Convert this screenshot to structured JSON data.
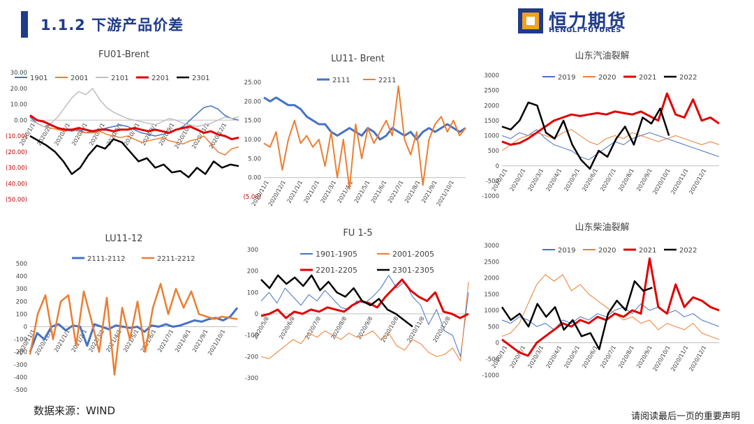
{
  "header": {
    "title": "1.1.2 下游产品价差"
  },
  "logo": {
    "name_cn": "恒力期货",
    "name_en": "HENGLI FUTURES"
  },
  "footer": {
    "source": "数据来源：WIND",
    "disclaimer": "请阅读最后一页的重要声明"
  },
  "chart_data": [
    {
      "id": "c1",
      "type": "line",
      "title": "FU01-Brent",
      "ylim": [
        -50,
        30
      ],
      "yticks": [
        "30.00",
        "20.00",
        "10.00",
        "0.00",
        "(10.00)",
        "(20.00)",
        "(30.00)",
        "(40.00)",
        "(50.00)"
      ],
      "xticks": [
        "2020/1/1",
        "2020/2/1",
        "2020/3/1",
        "2020/4/1",
        "2020/5/1",
        "2020/6/1",
        "2020/7/1",
        "2020/8/1",
        "2020/9/1",
        "2020/10/1",
        "2020/11/1",
        "2020/12/1"
      ],
      "series": [
        {
          "name": "1901",
          "color": "#4472c4",
          "width": 1.5,
          "values": [
            2,
            -2,
            -4,
            -3,
            -5,
            -6,
            -7,
            -6,
            -8,
            -7,
            -6,
            -5,
            -4,
            -3,
            -4,
            -6,
            -8,
            -9,
            -10,
            -9,
            -8,
            -6,
            -4,
            0,
            4,
            8,
            9,
            7,
            3,
            1,
            0
          ]
        },
        {
          "name": "2001",
          "color": "#ed7d31",
          "width": 1.5,
          "values": [
            0,
            -2,
            -4,
            -5,
            -6,
            -7,
            -6,
            -7,
            -8,
            -8,
            -7,
            -9,
            -10,
            -11,
            -10,
            -12,
            -14,
            -13,
            -12,
            -11,
            -13,
            -14,
            -15,
            -13,
            -12,
            -10,
            -15,
            -20,
            -22,
            -18,
            -17
          ]
        },
        {
          "name": "2101",
          "color": "#bfbfbf",
          "width": 1.5,
          "values": [
            0,
            -2,
            -4,
            -2,
            2,
            8,
            14,
            18,
            16,
            20,
            13,
            8,
            5,
            3,
            1,
            0,
            -1,
            -2,
            -3,
            -1,
            1,
            0,
            -2,
            -3,
            -4,
            -3,
            -2,
            0,
            2,
            1,
            2
          ]
        },
        {
          "name": "2201",
          "color": "#e00000",
          "width": 3,
          "values": [
            3,
            0,
            -1,
            -3,
            -5,
            -6,
            -6,
            -5,
            -6,
            -7,
            -6,
            -6,
            -7,
            -6,
            -6,
            -5,
            -6,
            -7,
            -6,
            -7,
            -8,
            -6,
            -5,
            -4,
            -6,
            -8,
            -7,
            -9,
            -10,
            -12,
            -11
          ]
        },
        {
          "name": "2301",
          "color": "#000000",
          "width": 2.5,
          "values": [
            -10,
            -13,
            -16,
            -20,
            -26,
            -34,
            -30,
            -22,
            -16,
            -18,
            -12,
            -14,
            -20,
            -26,
            -24,
            -30,
            -28,
            -33,
            -32,
            -36,
            -30,
            -34,
            -26,
            -30,
            -28,
            -29
          ]
        }
      ]
    },
    {
      "id": "c2",
      "type": "line",
      "title": "LU11- Brent",
      "ylim": [
        -5,
        25
      ],
      "yticks": [
        "25.00",
        "20.00",
        "15.00",
        "10.00",
        "5.00",
        "0.00",
        "(5.00)"
      ],
      "xticks": [
        "2020/11/1",
        "2020/12/1",
        "2021/1/1",
        "2021/2/1",
        "2021/3/1",
        "2021/4/1",
        "2021/5/1",
        "2021/6/1",
        "2021/7/1",
        "2021/8/1",
        "2021/9/1",
        "2021/10/1"
      ],
      "series": [
        {
          "name": "2111",
          "color": "#4472c4",
          "width": 3,
          "values": [
            21,
            20,
            21,
            20,
            19,
            19,
            18,
            16,
            15,
            14,
            14,
            12,
            11,
            12,
            13,
            12,
            11,
            13,
            12,
            10,
            11,
            13,
            12,
            11,
            12,
            10,
            12,
            13,
            12,
            13,
            14,
            13,
            12,
            13
          ]
        },
        {
          "name": "2211",
          "color": "#ed7d31",
          "width": 2,
          "values": [
            9,
            8,
            12,
            2,
            10,
            15,
            9,
            11,
            8,
            10,
            3,
            12,
            0,
            10,
            -3,
            14,
            5,
            13,
            9,
            12,
            15,
            11,
            24,
            10,
            6,
            12,
            -2,
            10,
            14,
            16,
            12,
            15,
            11,
            13
          ]
        }
      ]
    },
    {
      "id": "c3",
      "type": "line",
      "title": "山东汽油裂解",
      "ylim": [
        -1000,
        3000
      ],
      "yticks": [
        "3000",
        "2500",
        "2000",
        "1500",
        "1000",
        "500",
        "0",
        "-500",
        "-1000"
      ],
      "xticks": [
        "2020/1/1",
        "2020/2/1",
        "2020/3/1",
        "2020/4/1",
        "2020/5/1",
        "2020/6/1",
        "2020/7/1",
        "2020/8/1",
        "2020/9/1",
        "2020/10/1",
        "2020/11/1",
        "2020/12/1"
      ],
      "series": [
        {
          "name": "2019",
          "color": "#4472c4",
          "width": 1,
          "values": [
            1000,
            900,
            1100,
            1000,
            1200,
            900,
            700,
            600,
            500,
            300,
            200,
            400,
            600,
            800,
            700,
            900,
            1000,
            1100,
            1000,
            900,
            800,
            700,
            600,
            500,
            400,
            300
          ]
        },
        {
          "name": "2020",
          "color": "#ed7d31",
          "width": 1,
          "values": [
            500,
            700,
            900,
            1000,
            1100,
            1000,
            900,
            1100,
            1200,
            1000,
            800,
            700,
            900,
            1000,
            900,
            1100,
            1000,
            900,
            800,
            900,
            1000,
            900,
            800,
            700,
            800,
            700
          ]
        },
        {
          "name": "2021",
          "color": "#e00000",
          "width": 3,
          "values": [
            800,
            700,
            750,
            900,
            1100,
            1300,
            1500,
            1600,
            1700,
            1650,
            1700,
            1750,
            1700,
            1800,
            1750,
            1700,
            1800,
            1650,
            1500,
            2400,
            1700,
            1600,
            2200,
            1500,
            1600,
            1400
          ]
        },
        {
          "name": "2022",
          "color": "#000000",
          "width": 2.5,
          "values": [
            1300,
            1200,
            1500,
            2100,
            2000,
            1100,
            900,
            1500,
            700,
            200,
            -100,
            500,
            300,
            900,
            1300,
            700,
            1600,
            1400,
            1900,
            1000
          ]
        }
      ]
    },
    {
      "id": "c4",
      "type": "line",
      "title": "LU11-12",
      "ylim": [
        -500,
        500
      ],
      "yticks": [
        "500",
        "400",
        "300",
        "200",
        "100",
        "0",
        "-100",
        "-200",
        "-300",
        "-400",
        "-500"
      ],
      "xticks": [
        "2020/11/1",
        "2020/12/1",
        "2021/1/1",
        "2021/2/1",
        "2021/3/1",
        "2021/4/1",
        "2021/5/1",
        "2021/6/1",
        "2021/7/1",
        "2021/8/1",
        "2021/9/1",
        "2021/10/1"
      ],
      "series": [
        {
          "name": "2111-2112",
          "color": "#4472c4",
          "width": 3,
          "values": [
            -200,
            -50,
            -100,
            0,
            20,
            -30,
            10,
            0,
            -150,
            20,
            0,
            -20,
            10,
            0,
            -10,
            0,
            -40,
            10,
            0,
            20,
            0,
            10,
            30,
            50,
            40,
            60,
            70,
            50,
            80,
            150
          ]
        },
        {
          "name": "2211-2212",
          "color": "#ed7d31",
          "width": 2.5,
          "values": [
            -220,
            100,
            250,
            -100,
            200,
            250,
            -150,
            280,
            50,
            -200,
            230,
            -380,
            150,
            -100,
            200,
            -200,
            150,
            340,
            100,
            300,
            150,
            280,
            100,
            80,
            60,
            80,
            70,
            60
          ]
        }
      ]
    },
    {
      "id": "c5",
      "type": "line",
      "title": "FU 1-5",
      "ylim": [
        -300,
        300
      ],
      "yticks": [
        "300",
        "200",
        "100",
        "0",
        "-100",
        "-200",
        "-300"
      ],
      "xticks": [
        "2020/5/8",
        "2020/6/8",
        "2020/7/8",
        "2020/8/8",
        "2020/9/8",
        "2020/10/8",
        "2020/11/8",
        "2020/12/8"
      ],
      "series": [
        {
          "name": "1901-1905",
          "color": "#4472c4",
          "width": 1,
          "values": [
            60,
            100,
            50,
            120,
            80,
            40,
            90,
            60,
            110,
            70,
            30,
            20,
            60,
            50,
            80,
            120,
            180,
            120,
            150,
            80,
            40,
            -50,
            20,
            -80,
            -100,
            -200,
            100
          ]
        },
        {
          "name": "2001-2005",
          "color": "#ed7d31",
          "width": 1,
          "values": [
            -200,
            -210,
            -180,
            -150,
            -120,
            -140,
            -90,
            -110,
            -80,
            -100,
            -120,
            -90,
            -110,
            -100,
            -80,
            -120,
            -90,
            -150,
            -170,
            -120,
            -140,
            -180,
            -200,
            -190,
            -160,
            -220,
            150
          ]
        },
        {
          "name": "2201-2205",
          "color": "#e00000",
          "width": 3,
          "values": [
            -10,
            0,
            20,
            -20,
            10,
            0,
            20,
            10,
            30,
            20,
            10,
            40,
            60,
            50,
            30,
            80,
            120,
            160,
            110,
            80,
            60,
            100,
            10,
            0,
            -20,
            0
          ]
        },
        {
          "name": "2301-2305",
          "color": "#000000",
          "width": 2.5,
          "values": [
            160,
            120,
            180,
            140,
            170,
            130,
            180,
            110,
            150,
            100,
            80,
            120,
            60,
            40,
            70,
            20,
            0,
            -30,
            -60
          ]
        }
      ]
    },
    {
      "id": "c6",
      "type": "line",
      "title": "山东柴油裂解",
      "ylim": [
        -1000,
        3000
      ],
      "yticks": [
        "3000",
        "2500",
        "2000",
        "1500",
        "1000",
        "500",
        "0",
        "-500",
        "-1000"
      ],
      "xticks": [
        "2020/1/1",
        "2020/2/1",
        "2020/3/1",
        "2020/4/1",
        "2020/5/1",
        "2020/6/1",
        "2020/7/1",
        "2020/8/1",
        "2020/9/1",
        "2020/10/1",
        "2020/11/1",
        "2020/12/1"
      ],
      "series": [
        {
          "name": "2019",
          "color": "#4472c4",
          "width": 1,
          "values": [
            700,
            600,
            800,
            700,
            500,
            600,
            400,
            700,
            600,
            800,
            700,
            900,
            800,
            1000,
            1100,
            900,
            1200,
            1000,
            1100,
            900,
            1000,
            800,
            900,
            700,
            600,
            500
          ]
        },
        {
          "name": "2020",
          "color": "#ed7d31",
          "width": 1,
          "values": [
            200,
            300,
            600,
            1200,
            1800,
            2100,
            1900,
            2100,
            1600,
            1800,
            1500,
            1300,
            1100,
            900,
            700,
            800,
            600,
            700,
            400,
            600,
            500,
            400,
            600,
            300,
            200,
            100
          ]
        },
        {
          "name": "2021",
          "color": "#e00000",
          "width": 3,
          "values": [
            100,
            -100,
            -300,
            -400,
            0,
            200,
            400,
            600,
            500,
            700,
            600,
            800,
            700,
            900,
            800,
            1000,
            900,
            2600,
            1100,
            900,
            1800,
            1100,
            1400,
            1300,
            1100,
            1000
          ]
        },
        {
          "name": "2022",
          "color": "#000000",
          "width": 2.5,
          "values": [
            1100,
            700,
            900,
            500,
            1200,
            800,
            1100,
            400,
            700,
            200,
            300,
            -200,
            900,
            1300,
            1000,
            1900,
            1600,
            1700
          ]
        }
      ]
    }
  ]
}
